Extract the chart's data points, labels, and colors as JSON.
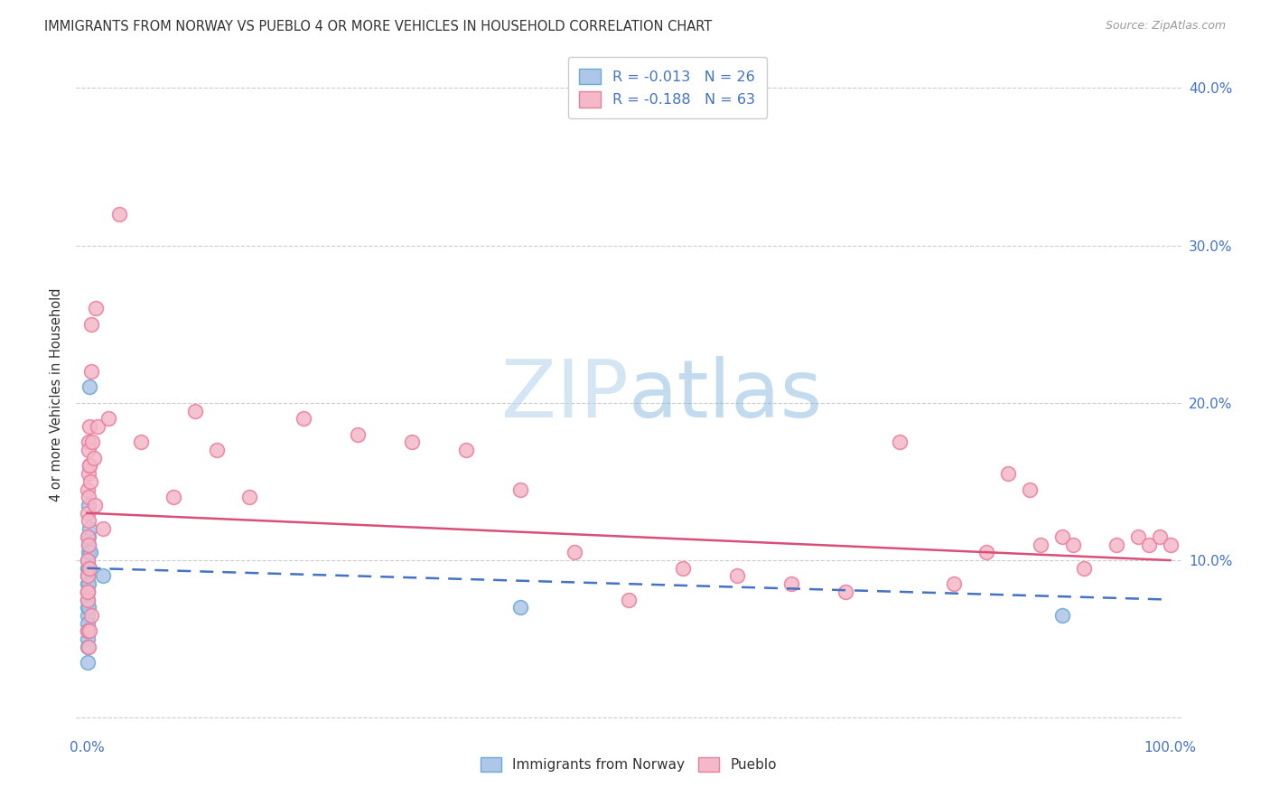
{
  "title": "IMMIGRANTS FROM NORWAY VS PUEBLO 4 OR MORE VEHICLES IN HOUSEHOLD CORRELATION CHART",
  "source": "Source: ZipAtlas.com",
  "ylabel": "4 or more Vehicles in Household",
  "norway_color": "#aec6e8",
  "norway_edge_color": "#6aaad4",
  "pueblo_color": "#f4b8c8",
  "pueblo_edge_color": "#e87fa0",
  "norway_line_color": "#4472c4",
  "pueblo_line_color": "#d94f78",
  "text_color_dark": "#333333",
  "text_color_blue": "#4472c4",
  "legend_label1": "R = -0.013   N = 26",
  "legend_label2": "R = -0.188   N = 63",
  "norway_x": [
    0.02,
    0.03,
    0.04,
    0.04,
    0.05,
    0.05,
    0.06,
    0.06,
    0.07,
    0.07,
    0.08,
    0.08,
    0.09,
    0.1,
    0.1,
    0.11,
    0.12,
    0.13,
    0.14,
    0.15,
    0.2,
    0.25,
    0.3,
    1.5,
    40.0,
    90.0
  ],
  "norway_y": [
    3.5,
    5.0,
    6.5,
    4.5,
    7.0,
    8.5,
    6.0,
    9.0,
    7.5,
    5.5,
    8.0,
    10.0,
    9.5,
    7.0,
    11.0,
    8.5,
    9.5,
    10.5,
    11.5,
    13.5,
    21.0,
    12.0,
    10.5,
    9.0,
    7.0,
    6.5
  ],
  "pueblo_x": [
    0.03,
    0.04,
    0.05,
    0.06,
    0.07,
    0.08,
    0.09,
    0.1,
    0.11,
    0.12,
    0.13,
    0.14,
    0.15,
    0.18,
    0.2,
    0.22,
    0.25,
    0.3,
    0.35,
    0.4,
    0.5,
    0.6,
    0.7,
    0.8,
    1.0,
    1.5,
    2.0,
    3.0,
    5.0,
    8.0,
    10.0,
    12.0,
    15.0,
    20.0,
    25.0,
    30.0,
    35.0,
    40.0,
    45.0,
    50.0,
    55.0,
    60.0,
    65.0,
    70.0,
    75.0,
    80.0,
    83.0,
    85.0,
    87.0,
    88.0,
    90.0,
    91.0,
    92.0,
    95.0,
    97.0,
    98.0,
    99.0,
    100.0,
    0.06,
    0.08,
    0.12,
    0.2,
    0.35
  ],
  "pueblo_y": [
    5.5,
    8.0,
    11.5,
    13.0,
    10.0,
    14.5,
    9.0,
    17.5,
    12.5,
    11.0,
    15.5,
    14.0,
    17.0,
    9.5,
    18.5,
    16.0,
    16.0,
    15.0,
    25.0,
    22.0,
    17.5,
    16.5,
    13.5,
    26.0,
    18.5,
    12.0,
    19.0,
    32.0,
    17.5,
    14.0,
    19.5,
    17.0,
    14.0,
    19.0,
    18.0,
    17.5,
    17.0,
    14.5,
    10.5,
    7.5,
    9.5,
    9.0,
    8.5,
    8.0,
    17.5,
    8.5,
    10.5,
    15.5,
    14.5,
    11.0,
    11.5,
    11.0,
    9.5,
    11.0,
    11.5,
    11.0,
    11.5,
    11.0,
    7.5,
    8.0,
    4.5,
    5.5,
    6.5
  ]
}
